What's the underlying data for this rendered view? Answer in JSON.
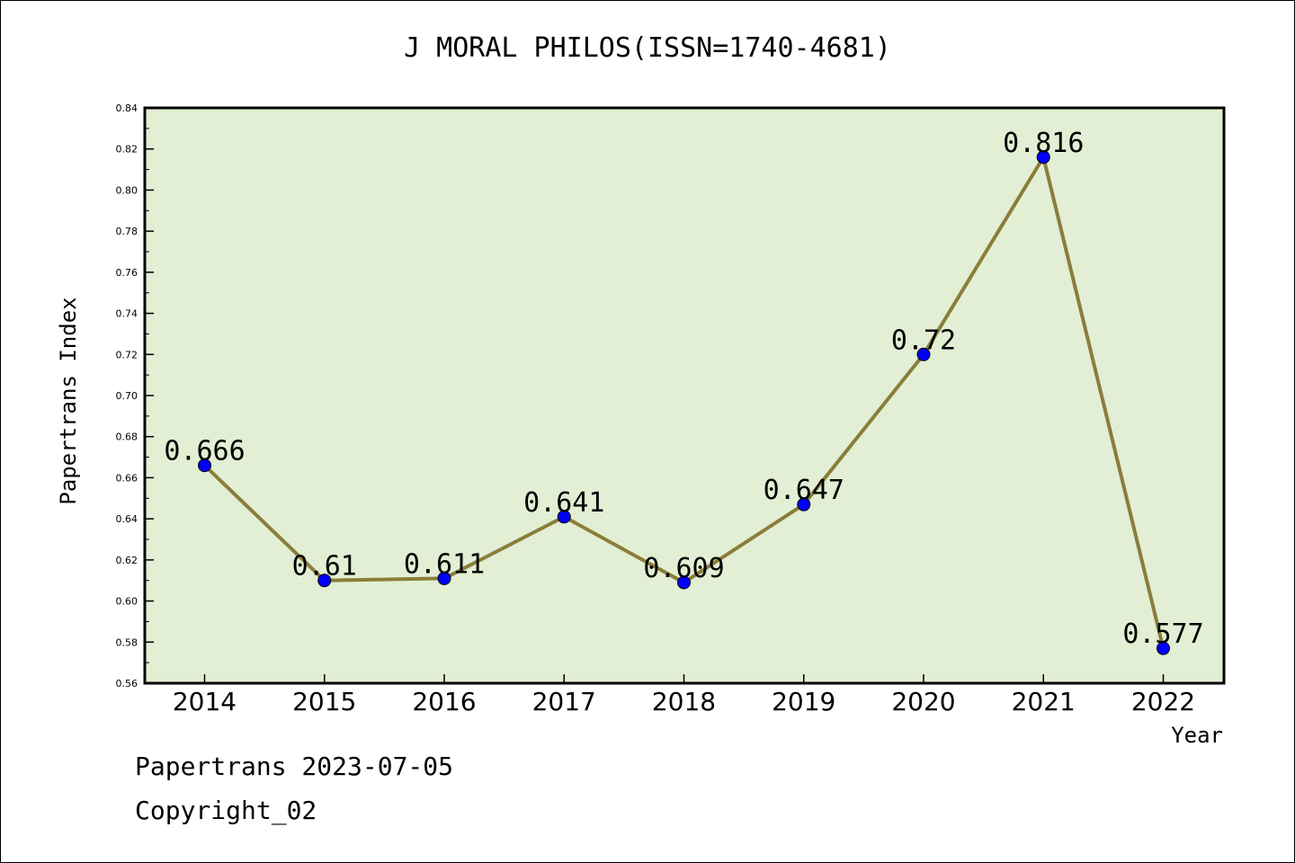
{
  "chart_data": {
    "type": "line",
    "title": "J MORAL PHILOS(ISSN=1740-4681)",
    "xlabel": "Year",
    "ylabel": "Papertrans Index",
    "categories": [
      "2014",
      "2015",
      "2016",
      "2017",
      "2018",
      "2019",
      "2020",
      "2021",
      "2022"
    ],
    "values": [
      0.666,
      0.61,
      0.611,
      0.641,
      0.609,
      0.647,
      0.72,
      0.816,
      0.577
    ],
    "data_labels": [
      "0.666",
      "0.61",
      "0.611",
      "0.641",
      "0.609",
      "0.647",
      "0.72",
      "0.816",
      "0.577"
    ],
    "ylim": [
      0.56,
      0.84
    ],
    "yticks": [
      "0.56",
      "0.58",
      "0.60",
      "0.62",
      "0.64",
      "0.66",
      "0.68",
      "0.70",
      "0.72",
      "0.74",
      "0.76",
      "0.78",
      "0.80",
      "0.82",
      "0.84"
    ],
    "grid": false,
    "colors": {
      "plot_background": "#e2efd4",
      "line": "#8b7d3a",
      "marker": "#0000ff"
    }
  },
  "footer": {
    "line1": "Papertrans 2023-07-05",
    "line2": "Copyright_02"
  }
}
